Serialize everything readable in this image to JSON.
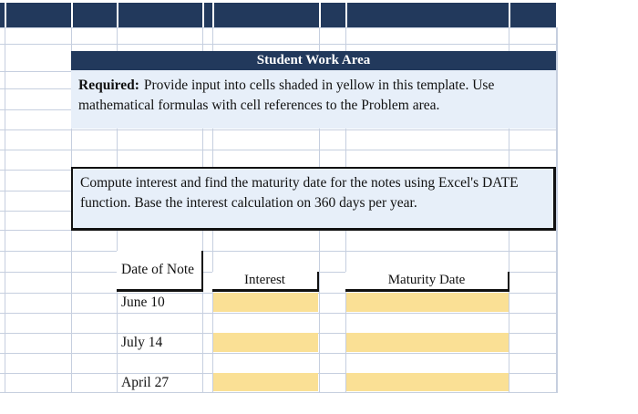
{
  "colors": {
    "navy": "#22395C",
    "panel_blue": "#E7EFF9",
    "input_yellow": "#FAE095",
    "gridline": "#C6CFDF",
    "black": "#111111"
  },
  "work_area": {
    "title": "Student Work Area",
    "required_label": "Required:",
    "required_text": "Provide input into cells shaded in yellow in this template. Use mathematical formulas with cell references to the Problem area.",
    "instruction": "Compute interest and find the maturity date for the notes using Excel's DATE function. Base the interest calculation on 360 days per year."
  },
  "notes_table": {
    "headers": {
      "date": "Date of Note",
      "interest": "Interest",
      "maturity": "Maturity Date"
    },
    "rows": [
      {
        "date": "June 10",
        "interest": "",
        "maturity": ""
      },
      {
        "date": "July 14",
        "interest": "",
        "maturity": ""
      },
      {
        "date": "April 27",
        "interest": "",
        "maturity": ""
      }
    ]
  }
}
